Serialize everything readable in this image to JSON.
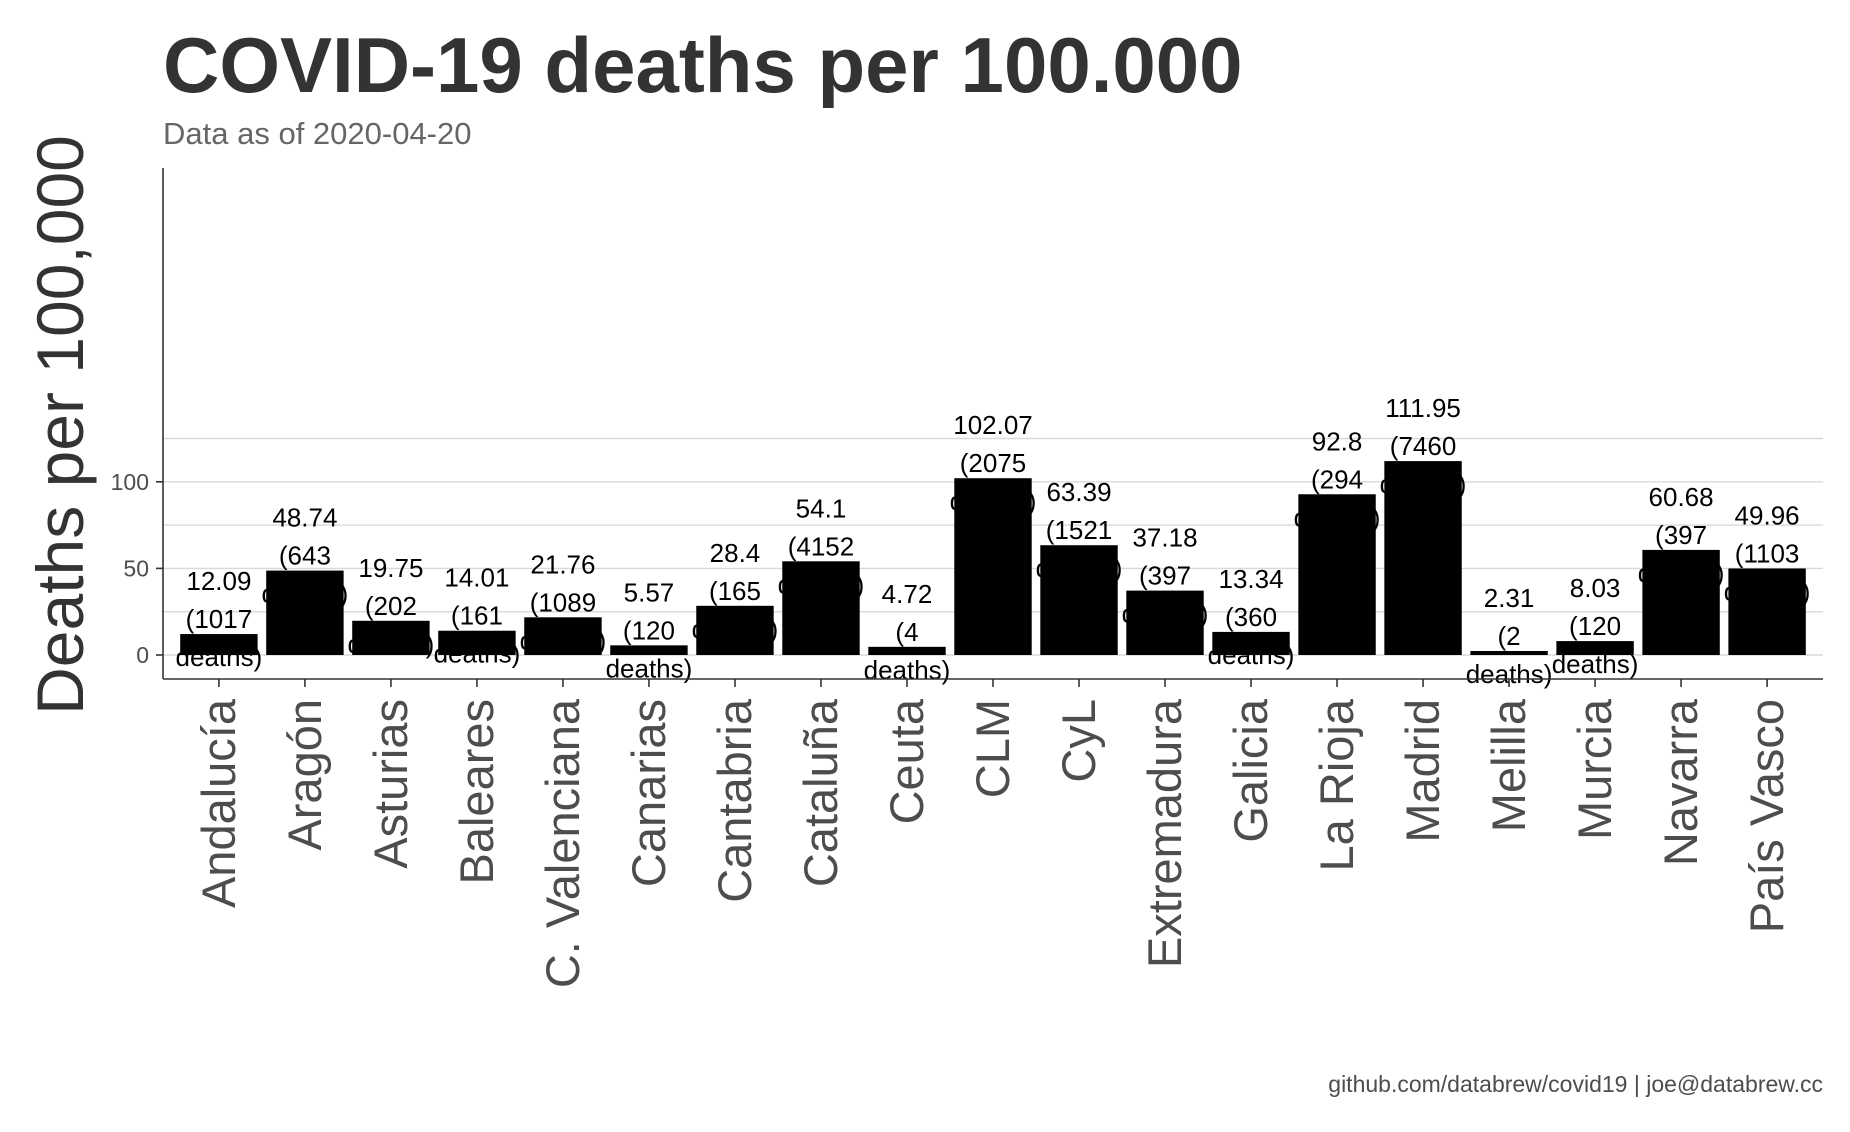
{
  "chart_data": {
    "type": "bar",
    "title": "COVID-19 deaths per 100.000",
    "subtitle": "Data as of 2020-04-20",
    "xlabel": "",
    "ylabel": "Deaths per 100,000",
    "caption": "github.com/databrew/covid19 | joe@databrew.cc",
    "ylim": [
      -6.5,
      140
    ],
    "yticks": [
      0,
      50,
      100
    ],
    "grid": true,
    "bar_color": "#000000",
    "categories": [
      "Andalucía",
      "Aragón",
      "Asturias",
      "Baleares",
      "C. Valenciana",
      "Canarias",
      "Cantabria",
      "Cataluña",
      "Ceuta",
      "CLM",
      "CyL",
      "Extremadura",
      "Galicia",
      "La Rioja",
      "Madrid",
      "Melilla",
      "Murcia",
      "Navarra",
      "País Vasco"
    ],
    "values": [
      12.09,
      48.74,
      19.75,
      14.01,
      21.76,
      5.57,
      28.4,
      54.1,
      4.72,
      102.07,
      63.39,
      37.18,
      13.34,
      92.8,
      111.95,
      2.31,
      8.03,
      60.68,
      49.96
    ],
    "deaths": [
      1017,
      643,
      202,
      161,
      1089,
      120,
      165,
      4152,
      4,
      2075,
      1521,
      397,
      360,
      294,
      7460,
      2,
      120,
      397,
      1103
    ],
    "data_labels": [
      {
        "value": "12.09",
        "deaths": "(1017",
        "unit": "deaths)"
      },
      {
        "value": "48.74",
        "deaths": "(643",
        "unit": "deaths)"
      },
      {
        "value": "19.75",
        "deaths": "(202",
        "unit": "deaths)"
      },
      {
        "value": "14.01",
        "deaths": "(161",
        "unit": "deaths)"
      },
      {
        "value": "21.76",
        "deaths": "(1089",
        "unit": "deaths)"
      },
      {
        "value": "5.57",
        "deaths": "(120",
        "unit": "deaths)"
      },
      {
        "value": "28.4",
        "deaths": "(165",
        "unit": "deaths)"
      },
      {
        "value": "54.1",
        "deaths": "(4152",
        "unit": "deaths)"
      },
      {
        "value": "4.72",
        "deaths": "(4",
        "unit": "deaths)"
      },
      {
        "value": "102.07",
        "deaths": "(2075",
        "unit": "deaths)"
      },
      {
        "value": "63.39",
        "deaths": "(1521",
        "unit": "deaths)"
      },
      {
        "value": "37.18",
        "deaths": "(397",
        "unit": "deaths)"
      },
      {
        "value": "13.34",
        "deaths": "(360",
        "unit": "deaths)"
      },
      {
        "value": "92.8",
        "deaths": "(294",
        "unit": "deaths)"
      },
      {
        "value": "111.95",
        "deaths": "(7460",
        "unit": "deaths)"
      },
      {
        "value": "2.31",
        "deaths": "(2",
        "unit": "deaths)"
      },
      {
        "value": "8.03",
        "deaths": "(120",
        "unit": "deaths)"
      },
      {
        "value": "60.68",
        "deaths": "(397",
        "unit": "deaths)"
      },
      {
        "value": "49.96",
        "deaths": "(1103",
        "unit": "deaths)"
      }
    ]
  }
}
